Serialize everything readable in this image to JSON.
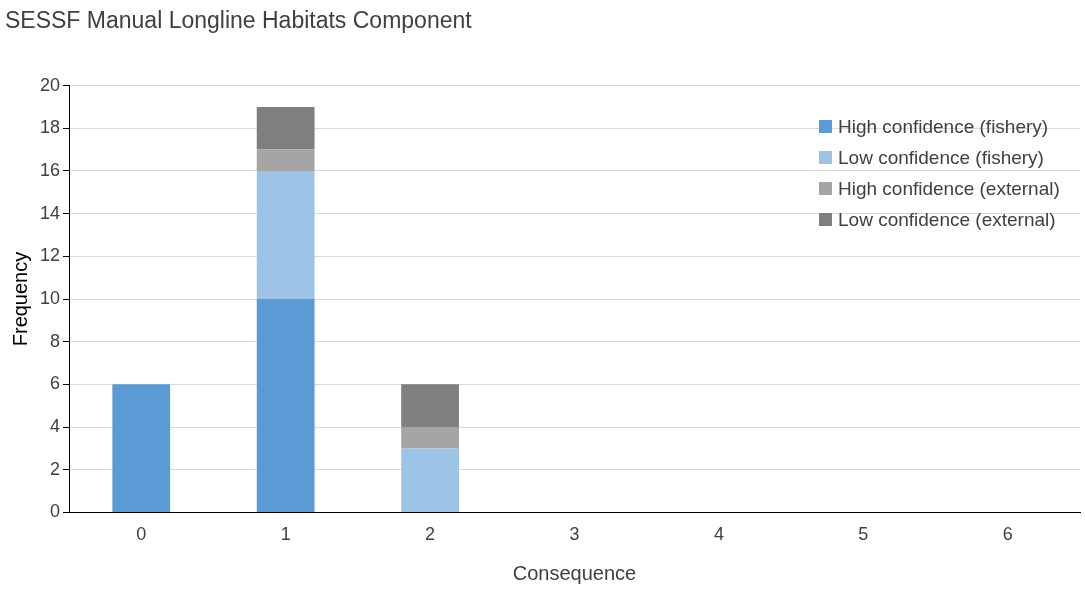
{
  "chart_data": {
    "type": "bar",
    "title": "SESSF Manual Longline Habitats Component",
    "xlabel": "Consequence",
    "ylabel": "Frequency",
    "categories": [
      "0",
      "1",
      "2",
      "3",
      "4",
      "5",
      "6"
    ],
    "stacked": true,
    "series": [
      {
        "name": "High confidence (fishery)",
        "color": "#5b9bd5",
        "values": [
          6,
          10,
          0,
          0,
          0,
          0,
          0
        ]
      },
      {
        "name": "Low confidence (fishery)",
        "color": "#9dc3e6",
        "values": [
          0,
          6,
          3,
          0,
          0,
          0,
          0
        ]
      },
      {
        "name": "High confidence (external)",
        "color": "#a5a5a5",
        "values": [
          0,
          1,
          1,
          0,
          0,
          0,
          0
        ]
      },
      {
        "name": "Low confidence (external)",
        "color": "#7f7f7f",
        "values": [
          0,
          2,
          2,
          0,
          0,
          0,
          0
        ]
      }
    ],
    "ylim": [
      0,
      20
    ],
    "yticks": [
      0,
      2,
      4,
      6,
      8,
      10,
      12,
      14,
      16,
      18,
      20
    ],
    "grid": "y",
    "legend": "top right"
  }
}
